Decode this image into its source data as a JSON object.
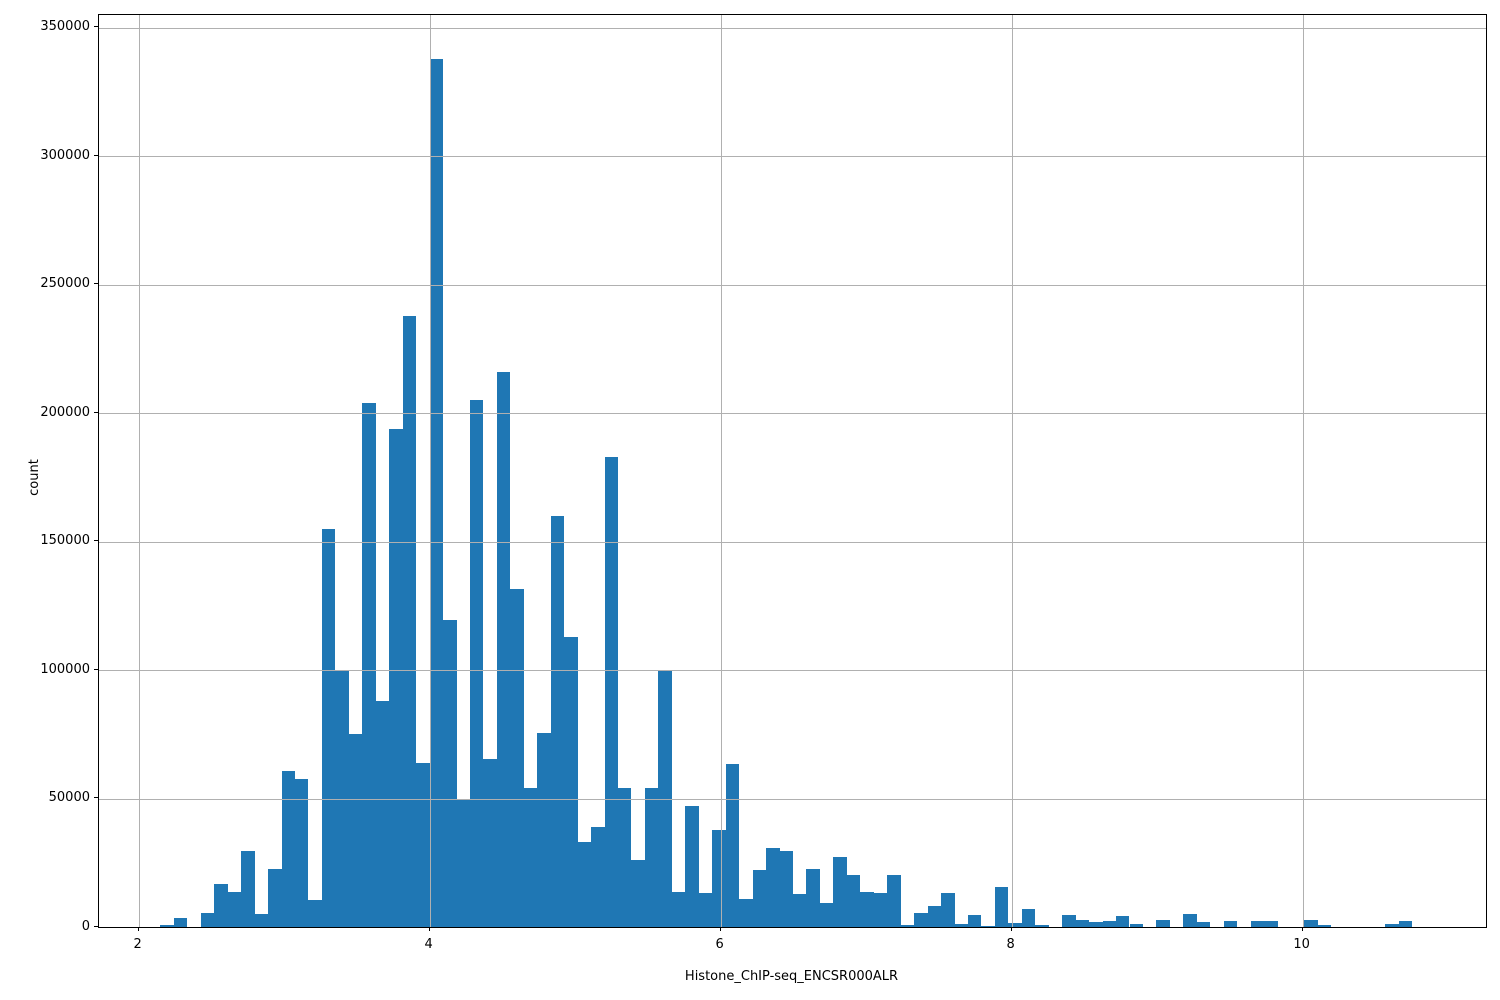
{
  "figure": {
    "background": "#ffffff"
  },
  "chart_data": {
    "type": "bar",
    "subtype": "histogram",
    "title": "",
    "xlabel": "Histone_ChIP-seq_ENCSR000ALR",
    "ylabel": "count",
    "xlim": [
      1.728,
      11.26
    ],
    "ylim": [
      0,
      355000
    ],
    "x_ticks": [
      2,
      4,
      6,
      8,
      10
    ],
    "y_ticks": [
      0,
      50000,
      100000,
      150000,
      200000,
      250000,
      300000,
      350000
    ],
    "grid": true,
    "grid_on_top": true,
    "legend": false,
    "bar_color": "#1f77b4",
    "grid_color": "#b0b0b0",
    "bin_start": 2.15,
    "bin_width": 0.0925,
    "counts": [
      900,
      3700,
      0,
      5400,
      16700,
      13800,
      29700,
      5000,
      22500,
      60900,
      57600,
      10600,
      155000,
      100000,
      75000,
      204000,
      88000,
      194000,
      238000,
      64000,
      338000,
      119500,
      50000,
      205000,
      65300,
      216000,
      131500,
      54000,
      75700,
      160000,
      113000,
      33000,
      39000,
      183000,
      54000,
      26000,
      54000,
      99500,
      13800,
      47300,
      13400,
      37600,
      63500,
      11000,
      22000,
      30800,
      29500,
      12800,
      22600,
      9500,
      27200,
      20300,
      13600,
      13200,
      20300,
      800,
      5400,
      8000,
      13300,
      1000,
      4700,
      500,
      15400,
      1700,
      6900,
      800,
      0,
      4700,
      2800,
      2100,
      2400,
      4100,
      1200,
      0,
      2800,
      0,
      5100,
      1800,
      0,
      2400,
      0,
      2400,
      2400,
      0,
      0,
      2800,
      700,
      0,
      0,
      0,
      0,
      1000,
      2500,
      0,
      0,
      0
    ]
  }
}
